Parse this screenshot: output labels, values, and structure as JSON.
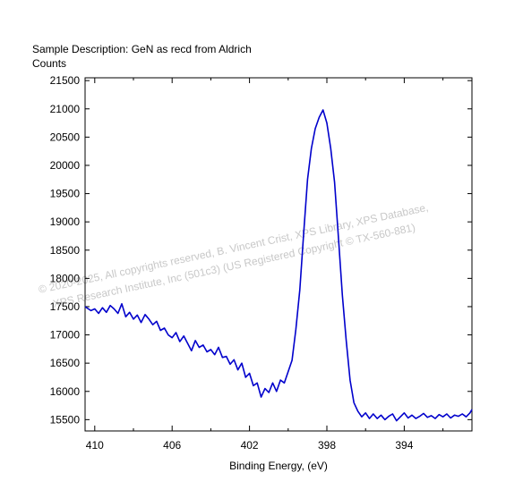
{
  "header": {
    "sample_description": "Sample Description:  GeN as recd from Aldrich",
    "counts_label": "Counts"
  },
  "watermark": {
    "line1": "©  2020-2025,  All copyrights reserved,   B. Vincent Crist,   XPS Library, XPS Database,",
    "line2": "XPS Research Institute, Inc (501c3)   (US Registered Copyright © TX-560-881)"
  },
  "chart_data": {
    "type": "line",
    "title": "",
    "xlabel": "Binding Energy, (eV)",
    "ylabel": "Counts",
    "x_reversed": true,
    "xlim": [
      410.5,
      390.5
    ],
    "ylim": [
      15300,
      21550
    ],
    "x_ticks": [
      410,
      406,
      402,
      398,
      394
    ],
    "x_tick_labels": [
      "410",
      "406",
      "402",
      "398",
      "394"
    ],
    "y_ticks": [
      15500,
      16000,
      16500,
      17000,
      17500,
      18000,
      18500,
      19000,
      19500,
      20000,
      20500,
      21000,
      21500
    ],
    "y_tick_labels": [
      "15500",
      "16000",
      "16500",
      "17000",
      "17500",
      "18000",
      "18500",
      "19000",
      "19500",
      "20000",
      "20500",
      "21000",
      "21500"
    ],
    "grid": false,
    "line_color": "#0000cc",
    "series": [
      {
        "x": [
          410.5,
          410.2,
          410.0,
          409.8,
          409.6,
          409.4,
          409.2,
          409.0,
          408.8,
          408.6,
          408.4,
          408.2,
          408.0,
          407.8,
          407.6,
          407.4,
          407.2,
          407.0,
          406.8,
          406.6,
          406.4,
          406.2,
          406.0,
          405.8,
          405.6,
          405.4,
          405.2,
          405.0,
          404.8,
          404.6,
          404.4,
          404.2,
          404.0,
          403.8,
          403.6,
          403.4,
          403.2,
          403.0,
          402.8,
          402.6,
          402.4,
          402.2,
          402.0,
          401.8,
          401.6,
          401.4,
          401.2,
          401.0,
          400.8,
          400.6,
          400.4,
          400.2,
          400.0,
          399.8,
          399.6,
          399.4,
          399.2,
          399.0,
          398.8,
          398.6,
          398.4,
          398.2,
          398.0,
          397.8,
          397.6,
          397.4,
          397.2,
          397.0,
          396.8,
          396.6,
          396.4,
          396.2,
          396.0,
          395.8,
          395.6,
          395.4,
          395.2,
          395.0,
          394.8,
          394.6,
          394.4,
          394.2,
          394.0,
          393.8,
          393.6,
          393.4,
          393.2,
          393.0,
          392.8,
          392.6,
          392.4,
          392.2,
          392.0,
          391.8,
          391.6,
          391.4,
          391.2,
          391.0,
          390.8,
          390.6,
          390.5
        ],
        "y": [
          17500,
          17430,
          17460,
          17380,
          17480,
          17400,
          17520,
          17460,
          17380,
          17550,
          17320,
          17400,
          17280,
          17350,
          17220,
          17360,
          17280,
          17180,
          17240,
          17080,
          17120,
          17000,
          16950,
          17040,
          16880,
          16980,
          16850,
          16720,
          16900,
          16780,
          16820,
          16700,
          16740,
          16650,
          16780,
          16600,
          16620,
          16480,
          16560,
          16380,
          16500,
          16250,
          16320,
          16100,
          16150,
          15900,
          16050,
          15980,
          16150,
          16000,
          16200,
          16150,
          16350,
          16550,
          17100,
          17800,
          18800,
          19750,
          20300,
          20650,
          20850,
          20980,
          20750,
          20300,
          19700,
          18700,
          17700,
          16900,
          16200,
          15800,
          15650,
          15550,
          15620,
          15520,
          15600,
          15520,
          15580,
          15500,
          15560,
          15600,
          15480,
          15550,
          15620,
          15530,
          15580,
          15520,
          15560,
          15610,
          15540,
          15570,
          15520,
          15590,
          15550,
          15600,
          15530,
          15580,
          15560,
          15600,
          15550,
          15620,
          15680
        ]
      }
    ]
  }
}
